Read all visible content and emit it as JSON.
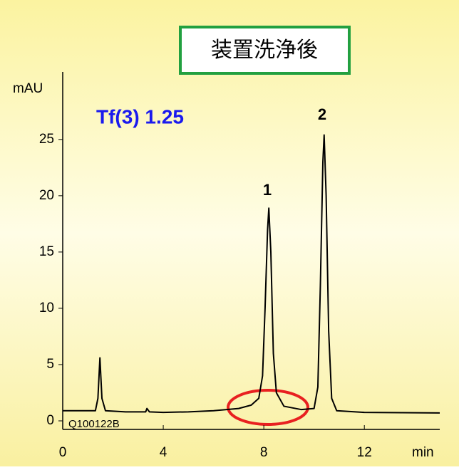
{
  "chart_data": {
    "type": "line",
    "title": "装置洗浄後",
    "subtitle": "Tf(3) 1.25",
    "x_label": "min",
    "y_label": "mAU",
    "sample_id": "Q100122B",
    "peak_labels": [
      "1",
      "2"
    ],
    "xlim": [
      0,
      15
    ],
    "xticks": [
      0,
      4,
      8,
      12
    ],
    "ylim": [
      -0.76,
      31
    ],
    "yticks": [
      0,
      5,
      10,
      15,
      20,
      25
    ],
    "series": [
      {
        "color": "#000000",
        "x": [
          0,
          1.3,
          1.4,
          1.48,
          1.56,
          1.7,
          2.5,
          3.3,
          3.35,
          3.45,
          4,
          5,
          6,
          7,
          7.5,
          7.8,
          7.95,
          8.05,
          8.15,
          8.2,
          8.28,
          8.38,
          8.5,
          8.8,
          9.5,
          10.0,
          10.15,
          10.25,
          10.35,
          10.4,
          10.48,
          10.58,
          10.7,
          10.9,
          12,
          15
        ],
        "values": [
          0.9,
          0.9,
          2.0,
          5.6,
          2.0,
          0.9,
          0.8,
          0.8,
          1.1,
          0.8,
          0.75,
          0.8,
          0.9,
          1.1,
          1.4,
          2.0,
          4,
          10,
          17,
          18.9,
          15,
          6,
          2.5,
          1.3,
          1.0,
          1.1,
          3,
          12,
          23,
          25.4,
          20,
          8,
          2,
          0.9,
          0.75,
          0.7
        ]
      }
    ]
  }
}
